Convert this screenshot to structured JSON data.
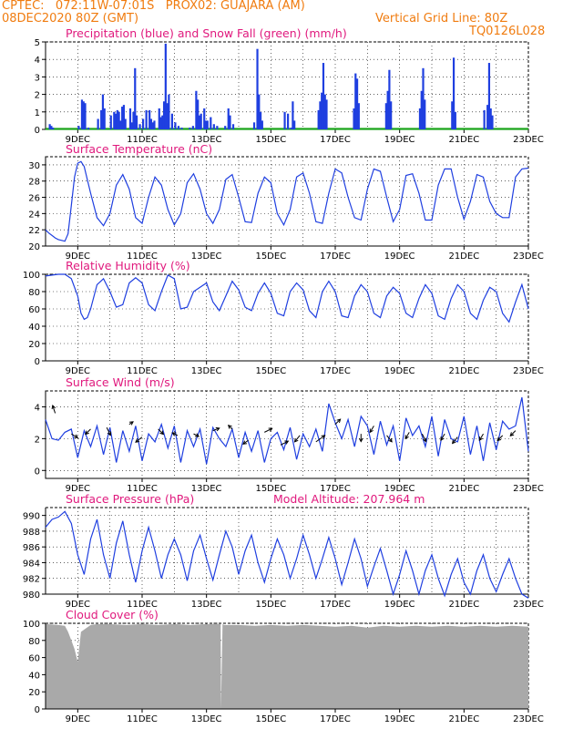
{
  "header": {
    "line1_left": "CPTEC:   072:11W-07:01S   PROX02: GUAJARA (AM)",
    "line2_left": "08DEC2020 80Z (GMT)",
    "line2_right": "Vertical Grid Line: 80Z",
    "line3_right": "TQ0126L028"
  },
  "x_labels": [
    "9DEC",
    "11DEC",
    "13DEC",
    "15DEC",
    "17DEC",
    "19DEC",
    "21DEC",
    "23DEC"
  ],
  "colors": {
    "series": "#1f3fe0",
    "snow": "#1aa31a",
    "title": "#e0197d",
    "header": "#f07c10",
    "cloud": "#a9a9a9"
  },
  "chart_data": [
    {
      "id": "precip",
      "type": "bar",
      "title": "Precipitation (blue) and Snow Fall (green) (mm/h)",
      "ylim": [
        0,
        5
      ],
      "yticks": [
        "0",
        "1",
        "2",
        "3",
        "4",
        "5"
      ],
      "x_range": [
        8.0,
        23.0
      ],
      "bars": [
        [
          8.1,
          0.3
        ],
        [
          8.15,
          0.2
        ],
        [
          8.2,
          0.1
        ],
        [
          9.0,
          0.2
        ],
        [
          9.1,
          1.7
        ],
        [
          9.15,
          1.6
        ],
        [
          9.2,
          1.5
        ],
        [
          9.3,
          0.1
        ],
        [
          9.6,
          0.6
        ],
        [
          9.7,
          1.1
        ],
        [
          9.75,
          2.0
        ],
        [
          9.8,
          1.2
        ],
        [
          10.0,
          0.8
        ],
        [
          10.1,
          1.0
        ],
        [
          10.15,
          0.9
        ],
        [
          10.2,
          1.1
        ],
        [
          10.25,
          1.0
        ],
        [
          10.3,
          0.5
        ],
        [
          10.35,
          1.3
        ],
        [
          10.4,
          1.4
        ],
        [
          10.45,
          0.6
        ],
        [
          10.6,
          1.2
        ],
        [
          10.65,
          0.4
        ],
        [
          10.7,
          1.0
        ],
        [
          10.75,
          3.5
        ],
        [
          10.8,
          0.8
        ],
        [
          10.9,
          0.3
        ],
        [
          11.0,
          0.6
        ],
        [
          11.1,
          1.1
        ],
        [
          11.2,
          1.1
        ],
        [
          11.25,
          0.6
        ],
        [
          11.3,
          0.4
        ],
        [
          11.35,
          0.5
        ],
        [
          11.5,
          1.2
        ],
        [
          11.55,
          0.7
        ],
        [
          11.6,
          0.8
        ],
        [
          11.65,
          1.6
        ],
        [
          11.7,
          4.9
        ],
        [
          11.75,
          1.5
        ],
        [
          11.8,
          2.0
        ],
        [
          11.9,
          0.9
        ],
        [
          12.0,
          0.4
        ],
        [
          12.1,
          0.2
        ],
        [
          12.2,
          0.1
        ],
        [
          12.45,
          0.1
        ],
        [
          12.55,
          0.2
        ],
        [
          12.65,
          2.2
        ],
        [
          12.7,
          1.7
        ],
        [
          12.75,
          0.8
        ],
        [
          12.8,
          0.9
        ],
        [
          12.9,
          1.2
        ],
        [
          12.95,
          0.5
        ],
        [
          13.0,
          0.5
        ],
        [
          13.1,
          0.7
        ],
        [
          13.2,
          0.3
        ],
        [
          13.3,
          0.2
        ],
        [
          13.55,
          0.2
        ],
        [
          13.65,
          1.2
        ],
        [
          13.7,
          0.8
        ],
        [
          13.8,
          0.3
        ],
        [
          14.45,
          0.4
        ],
        [
          14.55,
          4.6
        ],
        [
          14.6,
          2.0
        ],
        [
          14.65,
          1.0
        ],
        [
          14.7,
          0.5
        ],
        [
          15.4,
          1.0
        ],
        [
          15.5,
          0.9
        ],
        [
          15.6,
          0.1
        ],
        [
          15.65,
          1.6
        ],
        [
          15.7,
          0.5
        ],
        [
          16.45,
          1.1
        ],
        [
          16.5,
          1.6
        ],
        [
          16.55,
          2.1
        ],
        [
          16.6,
          3.8
        ],
        [
          16.65,
          2.0
        ],
        [
          16.7,
          1.7
        ],
        [
          17.55,
          1.2
        ],
        [
          17.6,
          3.2
        ],
        [
          17.65,
          2.9
        ],
        [
          17.7,
          1.5
        ],
        [
          18.55,
          1.5
        ],
        [
          18.6,
          2.2
        ],
        [
          18.65,
          3.4
        ],
        [
          18.7,
          1.6
        ],
        [
          19.6,
          1.2
        ],
        [
          19.65,
          2.2
        ],
        [
          19.7,
          3.5
        ],
        [
          19.75,
          1.7
        ],
        [
          20.6,
          1.6
        ],
        [
          20.65,
          4.1
        ],
        [
          20.7,
          1.0
        ],
        [
          21.6,
          1.1
        ],
        [
          21.7,
          1.4
        ],
        [
          21.75,
          3.8
        ],
        [
          21.8,
          1.2
        ],
        [
          21.85,
          0.8
        ]
      ]
    },
    {
      "id": "temp",
      "type": "line",
      "title": "Surface Temperature (nC)",
      "ylim": [
        20,
        31
      ],
      "yticks": [
        "20",
        "22",
        "24",
        "26",
        "28",
        "30"
      ],
      "x_range": [
        8.0,
        23.0
      ],
      "x": [
        8.0,
        8.1,
        8.2,
        8.3,
        8.4,
        8.5,
        8.6,
        8.7,
        8.8,
        8.9,
        9.0,
        9.1,
        9.2,
        9.4,
        9.6,
        9.8,
        10.0,
        10.2,
        10.4,
        10.6,
        10.8,
        11.0,
        11.2,
        11.4,
        11.6,
        11.8,
        12.0,
        12.2,
        12.4,
        12.6,
        12.8,
        13.0,
        13.2,
        13.4,
        13.6,
        13.8,
        14.0,
        14.2,
        14.4,
        14.6,
        14.8,
        15.0,
        15.2,
        15.4,
        15.6,
        15.8,
        16.0,
        16.2,
        16.4,
        16.6,
        16.8,
        17.0,
        17.2,
        17.4,
        17.6,
        17.8,
        18.0,
        18.2,
        18.4,
        18.6,
        18.8,
        19.0,
        19.2,
        19.4,
        19.6,
        19.8,
        20.0,
        20.2,
        20.4,
        20.6,
        20.8,
        21.0,
        21.2,
        21.4,
        21.6,
        21.8,
        22.0,
        22.2,
        22.4,
        22.6,
        22.8,
        23.0
      ],
      "y": [
        22.0,
        21.6,
        21.3,
        21.0,
        20.8,
        20.7,
        20.6,
        21.5,
        25.0,
        28.5,
        30.2,
        30.4,
        29.8,
        26.5,
        23.5,
        22.5,
        24.0,
        27.5,
        28.8,
        27.0,
        23.5,
        22.8,
        26.0,
        28.5,
        27.5,
        24.5,
        22.6,
        24.0,
        27.8,
        28.9,
        27.0,
        24.0,
        22.8,
        24.5,
        28.2,
        28.8,
        26.0,
        23.0,
        22.9,
        26.5,
        28.5,
        27.8,
        24.0,
        22.6,
        24.5,
        28.5,
        29.0,
        26.5,
        23.0,
        22.8,
        26.5,
        29.5,
        29.0,
        26.0,
        23.5,
        23.2,
        27.0,
        29.5,
        29.2,
        26.0,
        23.0,
        24.5,
        28.7,
        28.9,
        26.5,
        23.2,
        23.2,
        27.5,
        29.5,
        29.5,
        26.0,
        23.3,
        25.5,
        28.8,
        28.5,
        25.5,
        24.0,
        23.5,
        23.5,
        28.5,
        29.5,
        29.6
      ]
    },
    {
      "id": "rh",
      "type": "line",
      "title": "Relative Humidity (%)",
      "ylim": [
        0,
        100
      ],
      "yticks": [
        "0",
        "20",
        "40",
        "60",
        "80",
        "100"
      ],
      "x_range": [
        8.0,
        23.0
      ],
      "x": [
        8.0,
        8.2,
        8.4,
        8.6,
        8.8,
        9.0,
        9.1,
        9.2,
        9.3,
        9.4,
        9.6,
        9.8,
        10.0,
        10.2,
        10.4,
        10.6,
        10.8,
        11.0,
        11.2,
        11.4,
        11.6,
        11.8,
        12.0,
        12.2,
        12.4,
        12.6,
        12.8,
        13.0,
        13.2,
        13.4,
        13.6,
        13.8,
        14.0,
        14.2,
        14.4,
        14.6,
        14.8,
        15.0,
        15.2,
        15.4,
        15.6,
        15.8,
        16.0,
        16.2,
        16.4,
        16.6,
        16.8,
        17.0,
        17.2,
        17.4,
        17.6,
        17.8,
        18.0,
        18.2,
        18.4,
        18.6,
        18.8,
        19.0,
        19.2,
        19.4,
        19.6,
        19.8,
        20.0,
        20.2,
        20.4,
        20.6,
        20.8,
        21.0,
        21.2,
        21.4,
        21.6,
        21.8,
        22.0,
        22.2,
        22.4,
        22.6,
        22.8,
        23.0
      ],
      "y": [
        98,
        99,
        100,
        100,
        95,
        75,
        55,
        48,
        50,
        60,
        88,
        95,
        80,
        62,
        65,
        90,
        96,
        90,
        65,
        58,
        80,
        99,
        95,
        60,
        62,
        80,
        85,
        90,
        68,
        58,
        75,
        92,
        82,
        62,
        58,
        78,
        90,
        78,
        55,
        52,
        80,
        90,
        82,
        58,
        50,
        80,
        92,
        80,
        52,
        50,
        75,
        88,
        80,
        55,
        50,
        75,
        85,
        78,
        55,
        50,
        72,
        88,
        78,
        52,
        48,
        72,
        88,
        80,
        55,
        48,
        70,
        85,
        80,
        55,
        45,
        68,
        88,
        60
      ]
    },
    {
      "id": "wind",
      "type": "line",
      "title": "Surface Wind (m/s)",
      "ylim": [
        -0.5,
        5.0
      ],
      "yticks": [
        "0",
        "2",
        "4"
      ],
      "x_range": [
        8.0,
        23.0
      ],
      "x": [
        8.0,
        8.2,
        8.4,
        8.6,
        8.8,
        9.0,
        9.2,
        9.4,
        9.6,
        9.8,
        10.0,
        10.2,
        10.4,
        10.6,
        10.8,
        11.0,
        11.2,
        11.4,
        11.6,
        11.8,
        12.0,
        12.2,
        12.4,
        12.6,
        12.8,
        13.0,
        13.2,
        13.4,
        13.6,
        13.8,
        14.0,
        14.2,
        14.4,
        14.6,
        14.8,
        15.0,
        15.2,
        15.4,
        15.6,
        15.8,
        16.0,
        16.2,
        16.4,
        16.6,
        16.8,
        17.0,
        17.2,
        17.4,
        17.6,
        17.8,
        18.0,
        18.2,
        18.4,
        18.6,
        18.8,
        19.0,
        19.2,
        19.4,
        19.6,
        19.8,
        20.0,
        20.2,
        20.4,
        20.6,
        20.8,
        21.0,
        21.2,
        21.4,
        21.6,
        21.8,
        22.0,
        22.2,
        22.4,
        22.6,
        22.8,
        23.0
      ],
      "y": [
        3.2,
        2.0,
        1.9,
        2.4,
        2.6,
        0.8,
        2.5,
        1.5,
        2.8,
        1.0,
        2.7,
        0.5,
        2.5,
        1.2,
        2.8,
        0.6,
        2.3,
        1.8,
        2.9,
        1.4,
        2.8,
        0.5,
        2.5,
        1.5,
        2.6,
        0.4,
        2.7,
        2.0,
        1.5,
        2.6,
        0.8,
        2.4,
        1.2,
        2.5,
        0.5,
        2.0,
        2.4,
        1.3,
        2.7,
        0.7,
        2.3,
        1.5,
        2.6,
        1.2,
        4.2,
        3.0,
        2.0,
        3.2,
        1.5,
        3.4,
        2.8,
        1.0,
        3.1,
        1.6,
        2.8,
        0.6,
        3.3,
        2.2,
        2.8,
        1.5,
        3.4,
        0.9,
        3.2,
        2.0,
        1.8,
        3.4,
        1.0,
        2.8,
        0.6,
        3.0,
        1.3,
        3.1,
        2.6,
        2.8,
        4.6,
        1.2
      ],
      "arrows": [
        [
          8.3,
          3.6,
          -0.2,
          0.6
        ],
        [
          8.8,
          2.3,
          0.5,
          -0.3
        ],
        [
          9.4,
          2.6,
          -0.4,
          -0.4
        ],
        [
          9.9,
          2.7,
          0.3,
          -0.6
        ],
        [
          10.6,
          2.9,
          0.3,
          0.2
        ],
        [
          11.0,
          2.1,
          -0.5,
          -0.4
        ],
        [
          11.5,
          2.6,
          0.4,
          -0.4
        ],
        [
          12.1,
          2.2,
          -0.4,
          0.2
        ],
        [
          12.6,
          2.3,
          0.4,
          -0.2
        ],
        [
          13.2,
          2.5,
          0.5,
          0.2
        ],
        [
          13.8,
          2.6,
          -0.3,
          0.3
        ],
        [
          14.3,
          1.9,
          -0.4,
          -0.3
        ],
        [
          14.8,
          2.4,
          0.6,
          0.3
        ],
        [
          15.3,
          1.6,
          0.6,
          0.3
        ],
        [
          15.9,
          2.2,
          -0.4,
          -0.5
        ],
        [
          16.4,
          1.8,
          0.7,
          0.5
        ],
        [
          17.0,
          2.9,
          0.4,
          0.4
        ],
        [
          17.8,
          2.3,
          0.0,
          -0.6
        ],
        [
          18.2,
          2.8,
          -0.3,
          -0.5
        ],
        [
          18.6,
          2.2,
          0.4,
          -0.5
        ],
        [
          19.3,
          2.4,
          -0.3,
          -0.5
        ],
        [
          19.7,
          2.3,
          0.3,
          -0.6
        ],
        [
          20.4,
          2.3,
          -0.3,
          -0.5
        ],
        [
          20.8,
          2.1,
          -0.4,
          -0.5
        ],
        [
          21.6,
          2.3,
          -0.3,
          -0.5
        ],
        [
          22.2,
          2.2,
          -0.4,
          -0.4
        ],
        [
          22.6,
          2.5,
          -0.4,
          -0.4
        ]
      ]
    },
    {
      "id": "pressure",
      "type": "line",
      "title": "Surface Pressure (hPa)",
      "subtitle": "Model Altitude: 207.964 m",
      "ylim": [
        980,
        991
      ],
      "yticks": [
        "980",
        "982",
        "984",
        "986",
        "988",
        "990"
      ],
      "x_range": [
        8.0,
        23.0
      ],
      "x": [
        8.0,
        8.2,
        8.4,
        8.6,
        8.8,
        9.0,
        9.2,
        9.4,
        9.6,
        9.8,
        10.0,
        10.2,
        10.4,
        10.6,
        10.8,
        11.0,
        11.2,
        11.4,
        11.6,
        11.8,
        12.0,
        12.2,
        12.4,
        12.6,
        12.8,
        13.0,
        13.2,
        13.4,
        13.6,
        13.8,
        14.0,
        14.2,
        14.4,
        14.6,
        14.8,
        15.0,
        15.2,
        15.4,
        15.6,
        15.8,
        16.0,
        16.2,
        16.4,
        16.6,
        16.8,
        17.0,
        17.2,
        17.4,
        17.6,
        17.8,
        18.0,
        18.2,
        18.4,
        18.6,
        18.8,
        19.0,
        19.2,
        19.4,
        19.6,
        19.8,
        20.0,
        20.2,
        20.4,
        20.6,
        20.8,
        21.0,
        21.2,
        21.4,
        21.6,
        21.8,
        22.0,
        22.2,
        22.4,
        22.6,
        22.8,
        23.0
      ],
      "y": [
        988.5,
        989.5,
        989.8,
        990.5,
        989.0,
        985.0,
        982.5,
        987.0,
        989.5,
        985.0,
        982.0,
        986.5,
        989.3,
        985.0,
        981.5,
        985.5,
        988.5,
        985.5,
        982.0,
        985.0,
        987.0,
        985.0,
        981.7,
        985.5,
        987.5,
        984.5,
        981.8,
        985.0,
        988.0,
        986.0,
        982.5,
        985.5,
        987.5,
        984.0,
        981.5,
        984.5,
        987.0,
        985.0,
        982.0,
        984.5,
        987.5,
        985.0,
        982.0,
        984.5,
        987.2,
        984.5,
        981.2,
        984.0,
        987.0,
        984.5,
        981.0,
        983.5,
        985.8,
        983.0,
        980.0,
        982.5,
        985.5,
        983.0,
        980.0,
        983.0,
        985.0,
        982.0,
        979.8,
        982.5,
        984.5,
        981.5,
        980.0,
        983.0,
        985.0,
        982.0,
        980.3,
        982.5,
        984.5,
        982.0,
        980.0,
        979.5
      ]
    },
    {
      "id": "cloud",
      "type": "area",
      "title": "Cloud Cover (%)",
      "ylim": [
        0,
        100
      ],
      "yticks": [
        "0",
        "20",
        "40",
        "60",
        "80",
        "100"
      ],
      "x_range": [
        8.0,
        23.0
      ],
      "x": [
        8.0,
        8.4,
        8.6,
        8.7,
        8.8,
        8.9,
        9.0,
        9.1,
        9.4,
        9.6,
        10.0,
        10.5,
        11.0,
        11.5,
        12.0,
        12.5,
        13.0,
        13.44,
        13.45,
        13.5,
        13.55,
        14.0,
        14.5,
        15.0,
        15.5,
        16.0,
        16.5,
        17.0,
        17.5,
        18.0,
        18.5,
        19.0,
        19.5,
        20.0,
        20.5,
        21.0,
        21.5,
        22.0,
        22.5,
        23.0
      ],
      "y": [
        99,
        98,
        97,
        90,
        80,
        70,
        55,
        90,
        98,
        99,
        99,
        98,
        99,
        98,
        99,
        98,
        99,
        99,
        0,
        99,
        98,
        98,
        97,
        98,
        97,
        98,
        97,
        96,
        97,
        95,
        97,
        96,
        97,
        96,
        97,
        96,
        97,
        96,
        97,
        96
      ]
    }
  ]
}
